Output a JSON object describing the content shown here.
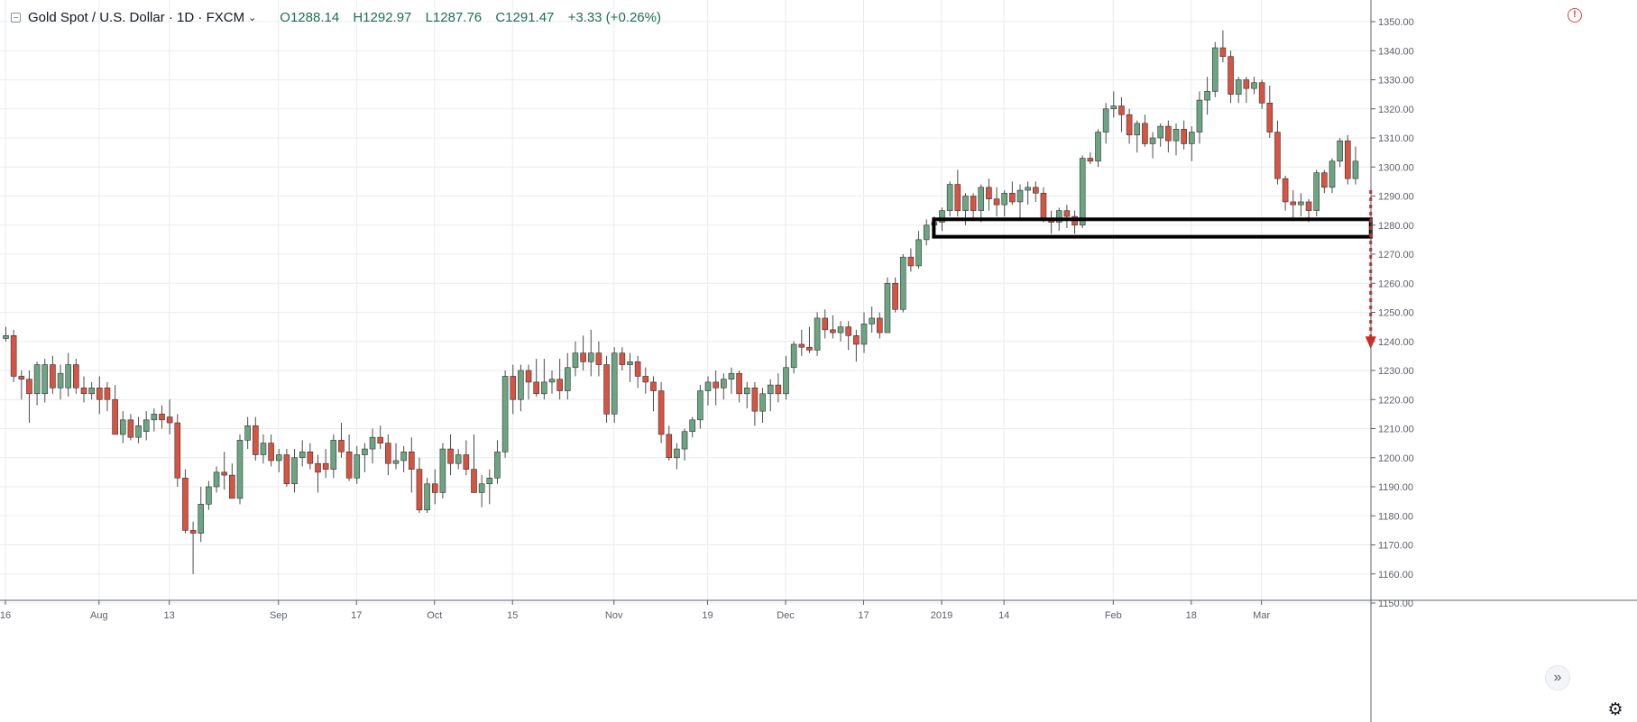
{
  "legend": {
    "symbol": "Gold Spot / U.S. Dollar · 1D · FXCM",
    "open": "O1288.14",
    "high": "H1292.97",
    "low": "L1287.76",
    "close": "C1291.47",
    "change": "+3.33 (+0.26%)"
  },
  "icons": {
    "collapse": "collapse-icon",
    "chevron": "chevron-down-icon",
    "alert": "alert-icon",
    "settings": "gear-icon",
    "scroll": "double-chevron-right-icon"
  },
  "colors": {
    "up": "#6ba583",
    "down": "#d75442",
    "grid": "#e9ebef",
    "axis_text": "#5d606b",
    "zone": "#000000",
    "arrow": "#e3211c"
  },
  "chart_data": {
    "type": "candlestick",
    "title": "",
    "xlabel": "",
    "ylabel": "",
    "ylim": [
      1150,
      1355
    ],
    "y_ticks": [
      1150,
      1160,
      1170,
      1180,
      1190,
      1200,
      1210,
      1220,
      1230,
      1240,
      1250,
      1260,
      1270,
      1280,
      1290,
      1300,
      1310,
      1320,
      1330,
      1340,
      1350
    ],
    "y_tick_labels": [
      "1150.00",
      "1160.00",
      "1170.00",
      "1180.00",
      "1190.00",
      "1200.00",
      "1210.00",
      "1220.00",
      "1230.00",
      "1240.00",
      "1250.00",
      "1260.00",
      "1270.00",
      "1280.00",
      "1290.00",
      "1300.00",
      "1310.00",
      "1320.00",
      "1330.00",
      "1340.00",
      "1350.00"
    ],
    "x_ticks": [
      {
        "label": "16",
        "index": 0
      },
      {
        "label": "Aug",
        "index": 12
      },
      {
        "label": "13",
        "index": 21
      },
      {
        "label": "Sep",
        "index": 35
      },
      {
        "label": "17",
        "index": 45
      },
      {
        "label": "Oct",
        "index": 55
      },
      {
        "label": "15",
        "index": 65
      },
      {
        "label": "Nov",
        "index": 78
      },
      {
        "label": "19",
        "index": 90
      },
      {
        "label": "Dec",
        "index": 100
      },
      {
        "label": "17",
        "index": 110
      },
      {
        "label": "2019",
        "index": 120
      },
      {
        "label": "14",
        "index": 128
      },
      {
        "label": "Feb",
        "index": 142
      },
      {
        "label": "18",
        "index": 152
      },
      {
        "label": "Mar",
        "index": 161
      }
    ],
    "candles": [
      [
        1241,
        1245,
        1240,
        1242
      ],
      [
        1242,
        1244,
        1226,
        1228
      ],
      [
        1228,
        1230,
        1220,
        1227
      ],
      [
        1227,
        1230,
        1212,
        1222
      ],
      [
        1222,
        1233,
        1218,
        1232
      ],
      [
        1222,
        1234,
        1219,
        1232
      ],
      [
        1232,
        1235,
        1222,
        1224
      ],
      [
        1224,
        1232,
        1220,
        1229
      ],
      [
        1224,
        1236,
        1221,
        1232
      ],
      [
        1232,
        1234,
        1222,
        1224
      ],
      [
        1224,
        1228,
        1219,
        1222
      ],
      [
        1222,
        1226,
        1220,
        1224
      ],
      [
        1224,
        1228,
        1215,
        1220
      ],
      [
        1224,
        1226,
        1216,
        1220
      ],
      [
        1220,
        1225,
        1210,
        1208
      ],
      [
        1208,
        1216,
        1205,
        1213
      ],
      [
        1213,
        1215,
        1206,
        1207
      ],
      [
        1207,
        1214,
        1205,
        1211
      ],
      [
        1209,
        1216,
        1206,
        1213
      ],
      [
        1213,
        1217,
        1209,
        1215
      ],
      [
        1215,
        1218,
        1210,
        1213
      ],
      [
        1214,
        1220,
        1208,
        1212
      ],
      [
        1212,
        1215,
        1190,
        1193
      ],
      [
        1193,
        1196,
        1174,
        1175
      ],
      [
        1175,
        1178,
        1160,
        1174
      ],
      [
        1174,
        1190,
        1171,
        1184
      ],
      [
        1184,
        1192,
        1182,
        1190
      ],
      [
        1190,
        1197,
        1188,
        1195
      ],
      [
        1195,
        1202,
        1189,
        1194
      ],
      [
        1194,
        1198,
        1187,
        1186
      ],
      [
        1186,
        1208,
        1184,
        1206
      ],
      [
        1206,
        1214,
        1203,
        1211
      ],
      [
        1211,
        1214,
        1199,
        1201
      ],
      [
        1201,
        1208,
        1198,
        1205
      ],
      [
        1205,
        1208,
        1197,
        1199
      ],
      [
        1199,
        1203,
        1195,
        1201
      ],
      [
        1201,
        1203,
        1190,
        1191
      ],
      [
        1191,
        1203,
        1188,
        1200
      ],
      [
        1200,
        1206,
        1197,
        1202
      ],
      [
        1202,
        1205,
        1196,
        1198
      ],
      [
        1198,
        1201,
        1188,
        1195
      ],
      [
        1198,
        1203,
        1193,
        1196
      ],
      [
        1196,
        1208,
        1193,
        1206
      ],
      [
        1206,
        1212,
        1200,
        1202
      ],
      [
        1202,
        1208,
        1192,
        1193
      ],
      [
        1193,
        1204,
        1191,
        1201
      ],
      [
        1201,
        1205,
        1195,
        1203
      ],
      [
        1203,
        1210,
        1198,
        1207
      ],
      [
        1207,
        1211,
        1203,
        1205
      ],
      [
        1205,
        1208,
        1194,
        1198
      ],
      [
        1198,
        1205,
        1196,
        1199
      ],
      [
        1199,
        1204,
        1195,
        1202
      ],
      [
        1202,
        1207,
        1188,
        1196
      ],
      [
        1196,
        1200,
        1181,
        1182
      ],
      [
        1182,
        1193,
        1181,
        1191
      ],
      [
        1191,
        1196,
        1184,
        1188
      ],
      [
        1188,
        1205,
        1186,
        1203
      ],
      [
        1203,
        1208,
        1194,
        1198
      ],
      [
        1198,
        1203,
        1196,
        1201
      ],
      [
        1201,
        1206,
        1194,
        1196
      ],
      [
        1196,
        1208,
        1188,
        1188
      ],
      [
        1188,
        1194,
        1183,
        1191
      ],
      [
        1191,
        1196,
        1184,
        1193
      ],
      [
        1193,
        1206,
        1191,
        1202
      ],
      [
        1202,
        1230,
        1200,
        1228
      ],
      [
        1228,
        1232,
        1215,
        1220
      ],
      [
        1220,
        1232,
        1216,
        1230
      ],
      [
        1230,
        1232,
        1220,
        1226
      ],
      [
        1226,
        1234,
        1221,
        1222
      ],
      [
        1222,
        1234,
        1220,
        1226
      ],
      [
        1226,
        1230,
        1222,
        1227
      ],
      [
        1227,
        1234,
        1220,
        1223
      ],
      [
        1223,
        1236,
        1220,
        1231
      ],
      [
        1231,
        1240,
        1228,
        1236
      ],
      [
        1236,
        1242,
        1230,
        1233
      ],
      [
        1233,
        1244,
        1228,
        1236
      ],
      [
        1236,
        1240,
        1228,
        1232
      ],
      [
        1232,
        1235,
        1212,
        1215
      ],
      [
        1215,
        1238,
        1212,
        1236
      ],
      [
        1236,
        1238,
        1230,
        1232
      ],
      [
        1232,
        1236,
        1226,
        1233
      ],
      [
        1233,
        1235,
        1224,
        1228
      ],
      [
        1228,
        1231,
        1222,
        1226
      ],
      [
        1226,
        1228,
        1216,
        1223
      ],
      [
        1223,
        1226,
        1205,
        1208
      ],
      [
        1208,
        1211,
        1199,
        1200
      ],
      [
        1200,
        1205,
        1196,
        1203
      ],
      [
        1203,
        1210,
        1199,
        1209
      ],
      [
        1209,
        1214,
        1207,
        1213
      ],
      [
        1213,
        1225,
        1210,
        1223
      ],
      [
        1223,
        1228,
        1218,
        1226
      ],
      [
        1226,
        1230,
        1218,
        1224
      ],
      [
        1224,
        1229,
        1220,
        1227
      ],
      [
        1227,
        1231,
        1222,
        1229
      ],
      [
        1229,
        1230,
        1219,
        1222
      ],
      [
        1222,
        1226,
        1217,
        1224
      ],
      [
        1224,
        1226,
        1211,
        1216
      ],
      [
        1216,
        1224,
        1212,
        1222
      ],
      [
        1222,
        1227,
        1216,
        1225
      ],
      [
        1225,
        1229,
        1219,
        1222
      ],
      [
        1222,
        1235,
        1220,
        1231
      ],
      [
        1231,
        1240,
        1229,
        1239
      ],
      [
        1239,
        1244,
        1235,
        1238
      ],
      [
        1238,
        1245,
        1236,
        1237
      ],
      [
        1237,
        1250,
        1235,
        1248
      ],
      [
        1248,
        1251,
        1241,
        1244
      ],
      [
        1244,
        1249,
        1241,
        1243
      ],
      [
        1243,
        1247,
        1240,
        1245
      ],
      [
        1245,
        1247,
        1237,
        1242
      ],
      [
        1242,
        1244,
        1233,
        1239
      ],
      [
        1239,
        1250,
        1236,
        1246
      ],
      [
        1246,
        1252,
        1243,
        1248
      ],
      [
        1248,
        1250,
        1241,
        1243
      ],
      [
        1243,
        1262,
        1243,
        1260
      ],
      [
        1260,
        1262,
        1250,
        1251
      ],
      [
        1251,
        1270,
        1250,
        1269
      ],
      [
        1269,
        1272,
        1264,
        1266
      ],
      [
        1266,
        1278,
        1265,
        1275
      ],
      [
        1275,
        1282,
        1273,
        1280
      ],
      [
        1280,
        1283,
        1277,
        1281
      ],
      [
        1281,
        1286,
        1278,
        1285
      ],
      [
        1285,
        1295,
        1283,
        1294
      ],
      [
        1294,
        1299,
        1283,
        1285
      ],
      [
        1285,
        1291,
        1280,
        1290
      ],
      [
        1290,
        1291,
        1282,
        1285
      ],
      [
        1285,
        1294,
        1281,
        1293
      ],
      [
        1293,
        1296,
        1285,
        1289
      ],
      [
        1289,
        1293,
        1283,
        1287
      ],
      [
        1287,
        1292,
        1283,
        1291
      ],
      [
        1291,
        1295,
        1287,
        1288
      ],
      [
        1288,
        1294,
        1282,
        1292
      ],
      [
        1292,
        1295,
        1287,
        1293
      ],
      [
        1293,
        1295,
        1288,
        1291
      ],
      [
        1291,
        1293,
        1281,
        1282
      ],
      [
        1282,
        1285,
        1277,
        1281
      ],
      [
        1281,
        1286,
        1278,
        1285
      ],
      [
        1285,
        1287,
        1279,
        1283
      ],
      [
        1283,
        1285,
        1277,
        1280
      ],
      [
        1280,
        1304,
        1279,
        1303
      ],
      [
        1303,
        1305,
        1301,
        1302
      ],
      [
        1302,
        1313,
        1300,
        1312
      ],
      [
        1312,
        1322,
        1308,
        1320
      ],
      [
        1320,
        1326,
        1317,
        1321
      ],
      [
        1321,
        1324,
        1312,
        1318
      ],
      [
        1318,
        1320,
        1308,
        1311
      ],
      [
        1311,
        1316,
        1305,
        1315
      ],
      [
        1315,
        1318,
        1307,
        1308
      ],
      [
        1308,
        1312,
        1303,
        1310
      ],
      [
        1310,
        1315,
        1307,
        1314
      ],
      [
        1314,
        1316,
        1305,
        1309
      ],
      [
        1309,
        1315,
        1304,
        1313
      ],
      [
        1313,
        1316,
        1306,
        1308
      ],
      [
        1308,
        1314,
        1302,
        1312
      ],
      [
        1312,
        1326,
        1308,
        1323
      ],
      [
        1323,
        1331,
        1318,
        1326
      ],
      [
        1326,
        1343,
        1324,
        1341
      ],
      [
        1341,
        1347,
        1336,
        1338
      ],
      [
        1338,
        1340,
        1322,
        1325
      ],
      [
        1325,
        1331,
        1322,
        1330
      ],
      [
        1330,
        1331,
        1322,
        1327
      ],
      [
        1327,
        1331,
        1325,
        1329
      ],
      [
        1329,
        1330,
        1320,
        1322
      ],
      [
        1322,
        1328,
        1310,
        1312
      ],
      [
        1312,
        1316,
        1294,
        1296
      ],
      [
        1296,
        1297,
        1285,
        1288
      ],
      [
        1288,
        1292,
        1282,
        1287
      ],
      [
        1287,
        1291,
        1283,
        1288
      ],
      [
        1288,
        1289,
        1281,
        1285
      ],
      [
        1285,
        1299,
        1283,
        1298
      ],
      [
        1298,
        1299,
        1291,
        1293
      ],
      [
        1293,
        1303,
        1291,
        1302
      ],
      [
        1302,
        1310,
        1300,
        1309
      ],
      [
        1309,
        1311,
        1294,
        1296
      ],
      [
        1296,
        1307,
        1294,
        1302
      ]
    ],
    "annotations": [
      {
        "type": "rectangle",
        "x_from": 119,
        "x_to": 175,
        "y_from": 1276,
        "y_to": 1282
      },
      {
        "type": "arrow",
        "direction": "down",
        "x": 175,
        "y_from": 1292,
        "y_to": 1238
      }
    ]
  }
}
